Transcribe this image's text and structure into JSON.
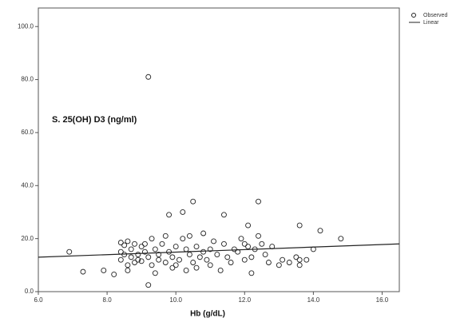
{
  "chart_data": {
    "type": "scatter",
    "annotation": "S. 25(OH) D3 (ng/ml)",
    "xlabel": "Hb (g/dL)",
    "series": [
      {
        "name": "Observed",
        "color": "#222222",
        "x": [
          6.9,
          7.3,
          7.9,
          8.2,
          8.4,
          8.4,
          8.4,
          8.5,
          8.5,
          8.6,
          8.6,
          8.6,
          8.7,
          8.7,
          8.8,
          8.8,
          8.9,
          8.9,
          9.0,
          9.0,
          9.1,
          9.1,
          9.2,
          9.2,
          9.2,
          9.3,
          9.3,
          9.4,
          9.4,
          9.5,
          9.5,
          9.6,
          9.7,
          9.7,
          9.8,
          9.8,
          9.9,
          9.9,
          10.0,
          10.0,
          10.1,
          10.2,
          10.2,
          10.3,
          10.3,
          10.4,
          10.4,
          10.5,
          10.5,
          10.6,
          10.6,
          10.7,
          10.8,
          10.8,
          10.9,
          11.0,
          11.0,
          11.1,
          11.2,
          11.3,
          11.4,
          11.4,
          11.5,
          11.6,
          11.7,
          11.8,
          11.9,
          12.0,
          12.0,
          12.1,
          12.1,
          12.2,
          12.2,
          12.3,
          12.4,
          12.4,
          12.5,
          12.6,
          12.7,
          12.8,
          13.0,
          13.1,
          13.3,
          13.5,
          13.6,
          13.6,
          13.6,
          13.8,
          14.0,
          14.2,
          14.8
        ],
        "values": [
          15,
          7.5,
          8,
          6.5,
          18.5,
          15,
          12,
          14,
          17.5,
          19,
          10,
          8,
          13,
          16,
          11,
          18,
          14,
          12,
          17,
          11.5,
          15,
          18,
          81,
          13,
          2.5,
          20,
          10,
          16,
          7,
          14,
          12,
          18,
          21,
          11,
          29,
          15,
          13,
          9,
          17,
          10,
          12,
          30,
          20,
          16,
          8,
          21,
          14,
          34,
          11,
          17,
          9,
          13,
          22,
          15,
          12,
          16,
          10,
          19,
          14,
          8,
          29,
          18,
          13,
          11,
          16,
          15,
          20,
          18,
          12,
          25,
          17,
          13,
          7,
          16,
          34,
          21,
          18,
          14,
          11,
          17,
          10,
          12,
          11,
          13,
          25,
          12,
          10,
          12,
          16,
          23,
          20
        ]
      },
      {
        "name": "Linear",
        "color": "#222222",
        "x": [
          6,
          16.5
        ],
        "values": [
          13,
          18
        ]
      }
    ],
    "xlim": [
      6,
      16.5
    ],
    "ylim": [
      0,
      107
    ],
    "xticks": [
      {
        "value": 6,
        "label": "6.0"
      },
      {
        "value": 8,
        "label": "8.0"
      },
      {
        "value": 10,
        "label": "10.0"
      },
      {
        "value": 12,
        "label": "12.0"
      },
      {
        "value": 14,
        "label": "14.0"
      },
      {
        "value": 16,
        "label": "16.0"
      }
    ],
    "yticks": [
      {
        "value": 0,
        "label": "0.0"
      },
      {
        "value": 20,
        "label": "20.0"
      },
      {
        "value": 40,
        "label": "40.0"
      },
      {
        "value": 60,
        "label": "60.0"
      },
      {
        "value": 80,
        "label": "80.0"
      },
      {
        "value": 100,
        "label": "100.0"
      }
    ],
    "legend": "top-right"
  }
}
